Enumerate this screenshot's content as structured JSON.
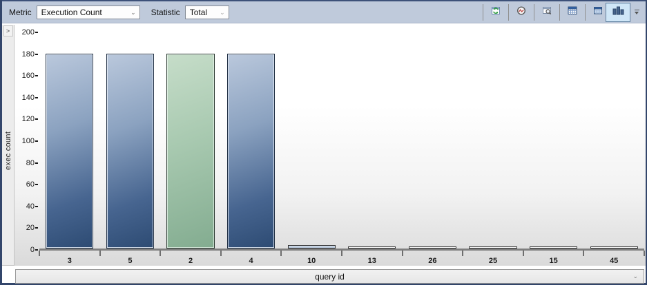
{
  "toolbar": {
    "metric_label": "Metric",
    "metric_value": "Execution Count",
    "statistic_label": "Statistic",
    "statistic_value": "Total",
    "dropdown_chevron": "⌄",
    "icons": [
      {
        "name": "refresh-icon"
      },
      {
        "name": "gauge-icon"
      },
      {
        "name": "zoom-window-icon"
      },
      {
        "name": "grid-window-icon"
      },
      {
        "name": "table-icon"
      },
      {
        "name": "bar-chart-icon",
        "selected": true
      },
      {
        "name": "overflow-icon"
      }
    ]
  },
  "sidebar": {
    "expand_label": ">"
  },
  "chart_data": {
    "type": "bar",
    "title": "",
    "xlabel": "query id",
    "ylabel": "exec count",
    "categories": [
      "3",
      "5",
      "2",
      "4",
      "10",
      "13",
      "26",
      "25",
      "15",
      "45"
    ],
    "values": [
      179,
      179,
      179,
      179,
      3,
      2,
      2,
      2,
      2,
      2
    ],
    "bar_colors": [
      "blue",
      "blue",
      "green",
      "blue",
      "lightblue",
      "white",
      "white",
      "white",
      "white",
      "white"
    ],
    "highlighted_category": "2",
    "ylim": [
      0,
      200
    ],
    "yticks": [
      0,
      20,
      40,
      60,
      80,
      100,
      120,
      140,
      160,
      180,
      200
    ],
    "grid": false,
    "legend_position": "none"
  },
  "xaxis_selector": {
    "label": "query id",
    "chevron": "⌄"
  },
  "colors": {
    "window_border": "#33466b",
    "toolbar_bg": "#bfcadb",
    "bar_blue_top": "#bac8dc",
    "bar_blue_bottom": "#2d4b73",
    "bar_green_top": "#c6ddc9",
    "bar_green_bottom": "#83ac90",
    "selected_button_bg": "#cfe6f7",
    "axis_line": "#7f7f7f"
  }
}
